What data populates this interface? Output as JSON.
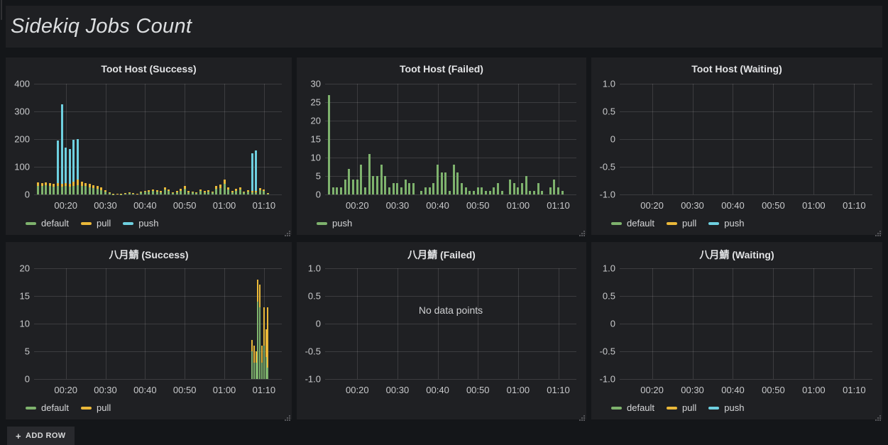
{
  "page": {
    "title": "Sidekiq Jobs Count",
    "add_row_label": "ADD ROW",
    "theme": {
      "page_bg": "#141619",
      "panel_bg": "#1f2023",
      "text": "#d8d9da",
      "green": "#7EB26D",
      "yellow": "#EAB839",
      "blue": "#6ED0E0"
    }
  },
  "chart_data": [
    {
      "type": "bar",
      "title": "Toot Host (Success)",
      "stacked": true,
      "grid": true,
      "legend_position": "bottom",
      "ylim": [
        0,
        400
      ],
      "y_ticks": [
        {
          "v": 400,
          "label": "400"
        },
        {
          "v": 300,
          "label": "300"
        },
        {
          "v": 200,
          "label": "200"
        },
        {
          "v": 100,
          "label": "100"
        },
        {
          "v": 0,
          "label": "0"
        }
      ],
      "x_range": [
        12,
        74.5
      ],
      "x_ticks": [
        {
          "v": 20,
          "label": "00:20"
        },
        {
          "v": 30,
          "label": "00:30"
        },
        {
          "v": 40,
          "label": "00:40"
        },
        {
          "v": 50,
          "label": "00:50"
        },
        {
          "v": 60,
          "label": "01:00"
        },
        {
          "v": 70,
          "label": "01:10"
        }
      ],
      "x": [
        13,
        14,
        15,
        16,
        17,
        18,
        19,
        20,
        21,
        22,
        23,
        24,
        25,
        26,
        27,
        28,
        29,
        30,
        31,
        32,
        33,
        34,
        35,
        36,
        37,
        38,
        39,
        40,
        41,
        42,
        43,
        44,
        45,
        46,
        47,
        48,
        49,
        50,
        51,
        52,
        53,
        54,
        55,
        56,
        57,
        58,
        59,
        60,
        61,
        62,
        63,
        64,
        65,
        66,
        67,
        68,
        69,
        70,
        71
      ],
      "series": [
        {
          "name": "default",
          "color": "#7EB26D",
          "values": [
            32,
            30,
            33,
            30,
            28,
            30,
            28,
            30,
            28,
            30,
            33,
            32,
            30,
            26,
            22,
            20,
            16,
            10,
            5,
            1,
            2,
            1,
            3,
            5,
            4,
            2,
            7,
            9,
            11,
            12,
            10,
            8,
            17,
            12,
            5,
            8,
            14,
            20,
            8,
            7,
            5,
            12,
            8,
            10,
            7,
            20,
            24,
            38,
            17,
            8,
            13,
            17,
            7,
            10,
            8,
            8,
            15,
            12,
            3
          ]
        },
        {
          "name": "pull",
          "color": "#EAB839",
          "values": [
            12,
            10,
            10,
            12,
            10,
            12,
            10,
            12,
            10,
            15,
            20,
            13,
            12,
            12,
            11,
            10,
            9,
            5,
            3,
            1,
            1,
            1,
            2,
            3,
            2,
            1,
            3,
            5,
            5,
            6,
            5,
            4,
            8,
            6,
            3,
            4,
            6,
            10,
            4,
            3,
            3,
            6,
            4,
            5,
            3,
            10,
            11,
            17,
            8,
            4,
            7,
            8,
            3,
            5,
            4,
            4,
            7,
            6,
            2
          ]
        },
        {
          "name": "push",
          "color": "#6ED0E0",
          "values": [
            0,
            0,
            0,
            0,
            0,
            153,
            287,
            128,
            127,
            152,
            147,
            0,
            0,
            0,
            0,
            0,
            0,
            0,
            0,
            0,
            0,
            0,
            0,
            0,
            0,
            0,
            0,
            0,
            0,
            0,
            0,
            0,
            0,
            0,
            0,
            0,
            0,
            0,
            0,
            0,
            0,
            0,
            0,
            0,
            0,
            0,
            0,
            0,
            0,
            0,
            0,
            0,
            0,
            0,
            138,
            146,
            0,
            0,
            0
          ]
        }
      ],
      "legend": [
        "default",
        "pull",
        "push"
      ],
      "no_data_text": null
    },
    {
      "type": "bar",
      "title": "Toot Host (Failed)",
      "stacked": true,
      "grid": true,
      "legend_position": "bottom",
      "ylim": [
        0,
        30
      ],
      "y_ticks": [
        {
          "v": 30,
          "label": "30"
        },
        {
          "v": 25,
          "label": "25"
        },
        {
          "v": 20,
          "label": "20"
        },
        {
          "v": 15,
          "label": "15"
        },
        {
          "v": 10,
          "label": "10"
        },
        {
          "v": 5,
          "label": "5"
        },
        {
          "v": 0,
          "label": "0"
        }
      ],
      "x_range": [
        12,
        74.5
      ],
      "x_ticks": [
        {
          "v": 20,
          "label": "00:20"
        },
        {
          "v": 30,
          "label": "00:30"
        },
        {
          "v": 40,
          "label": "00:40"
        },
        {
          "v": 50,
          "label": "00:50"
        },
        {
          "v": 60,
          "label": "01:00"
        },
        {
          "v": 70,
          "label": "01:10"
        }
      ],
      "x": [
        13,
        14,
        15,
        16,
        17,
        18,
        19,
        20,
        21,
        22,
        23,
        24,
        25,
        26,
        27,
        28,
        29,
        30,
        31,
        32,
        33,
        34,
        35,
        36,
        37,
        38,
        39,
        40,
        41,
        42,
        43,
        44,
        45,
        46,
        47,
        48,
        49,
        50,
        51,
        52,
        53,
        54,
        55,
        56,
        57,
        58,
        59,
        60,
        61,
        62,
        63,
        64,
        65,
        66,
        67,
        68,
        69,
        70,
        71
      ],
      "series": [
        {
          "name": "push",
          "color": "#7EB26D",
          "values": [
            27,
            2,
            2,
            2,
            4,
            7,
            4,
            4,
            8,
            2,
            11,
            5,
            5,
            8,
            5,
            2,
            3,
            3,
            2,
            4,
            3,
            3,
            0,
            1,
            2,
            2,
            3,
            8,
            6,
            6,
            1,
            8,
            6,
            3,
            2,
            1,
            1,
            2,
            2,
            1,
            1,
            2,
            3,
            1,
            0,
            4,
            3,
            2,
            3,
            5,
            1,
            1,
            3,
            1,
            0,
            2,
            4,
            2,
            1
          ]
        }
      ],
      "legend": [
        "push"
      ],
      "no_data_text": null
    },
    {
      "type": "bar",
      "title": "Toot Host (Waiting)",
      "stacked": true,
      "grid": true,
      "legend_position": "bottom",
      "ylim": [
        -1,
        1
      ],
      "y_ticks": [
        {
          "v": 1,
          "label": "1.0"
        },
        {
          "v": 0.5,
          "label": "0.5"
        },
        {
          "v": 0,
          "label": "0"
        },
        {
          "v": -0.5,
          "label": "-0.5"
        },
        {
          "v": -1,
          "label": "-1.0"
        }
      ],
      "x_range": [
        12,
        74.5
      ],
      "x_ticks": [
        {
          "v": 20,
          "label": "00:20"
        },
        {
          "v": 30,
          "label": "00:30"
        },
        {
          "v": 40,
          "label": "00:40"
        },
        {
          "v": 50,
          "label": "00:50"
        },
        {
          "v": 60,
          "label": "01:00"
        },
        {
          "v": 70,
          "label": "01:10"
        }
      ],
      "x": [],
      "series": [
        {
          "name": "default",
          "color": "#7EB26D",
          "values": []
        },
        {
          "name": "pull",
          "color": "#EAB839",
          "values": []
        },
        {
          "name": "push",
          "color": "#6ED0E0",
          "values": []
        }
      ],
      "legend": [
        "default",
        "pull",
        "push"
      ],
      "no_data_text": null
    },
    {
      "type": "bar",
      "title": "八月鯖 (Success)",
      "stacked": true,
      "grid": true,
      "legend_position": "bottom",
      "ylim": [
        0,
        20
      ],
      "y_ticks": [
        {
          "v": 20,
          "label": "20"
        },
        {
          "v": 15,
          "label": "15"
        },
        {
          "v": 10,
          "label": "10"
        },
        {
          "v": 5,
          "label": "5"
        },
        {
          "v": 0,
          "label": "0"
        }
      ],
      "x_range": [
        12,
        74.5
      ],
      "x_ticks": [
        {
          "v": 20,
          "label": "00:20"
        },
        {
          "v": 30,
          "label": "00:30"
        },
        {
          "v": 40,
          "label": "00:40"
        },
        {
          "v": 50,
          "label": "00:50"
        },
        {
          "v": 60,
          "label": "01:00"
        },
        {
          "v": 70,
          "label": "01:10"
        }
      ],
      "x": [
        67,
        67.5,
        68,
        68.5,
        69,
        69.5,
        70,
        70.5,
        71
      ],
      "series": [
        {
          "name": "default",
          "color": "#7EB26D",
          "values": [
            5,
            3,
            3,
            14,
            13,
            3,
            6,
            4,
            2
          ]
        },
        {
          "name": "pull",
          "color": "#EAB839",
          "values": [
            2,
            3,
            2,
            4,
            4,
            3,
            7,
            5,
            11
          ]
        }
      ],
      "legend": [
        "default",
        "pull"
      ],
      "no_data_text": null
    },
    {
      "type": "bar",
      "title": "八月鯖 (Failed)",
      "stacked": true,
      "grid": true,
      "legend_position": "bottom",
      "ylim": [
        -1,
        1
      ],
      "y_ticks": [
        {
          "v": 1,
          "label": "1.0"
        },
        {
          "v": 0.5,
          "label": "0.5"
        },
        {
          "v": 0,
          "label": "0"
        },
        {
          "v": -0.5,
          "label": "-0.5"
        },
        {
          "v": -1,
          "label": "-1.0"
        }
      ],
      "x_range": [
        12,
        74.5
      ],
      "x_ticks": [
        {
          "v": 20,
          "label": "00:20"
        },
        {
          "v": 30,
          "label": "00:30"
        },
        {
          "v": 40,
          "label": "00:40"
        },
        {
          "v": 50,
          "label": "00:50"
        },
        {
          "v": 60,
          "label": "01:00"
        },
        {
          "v": 70,
          "label": "01:10"
        }
      ],
      "x": [],
      "series": [],
      "legend": [],
      "no_data_text": "No data points"
    },
    {
      "type": "bar",
      "title": "八月鯖 (Waiting)",
      "stacked": true,
      "grid": true,
      "legend_position": "bottom",
      "ylim": [
        -1,
        1
      ],
      "y_ticks": [
        {
          "v": 1,
          "label": "1.0"
        },
        {
          "v": 0.5,
          "label": "0.5"
        },
        {
          "v": 0,
          "label": "0"
        },
        {
          "v": -0.5,
          "label": "-0.5"
        },
        {
          "v": -1,
          "label": "-1.0"
        }
      ],
      "x_range": [
        12,
        74.5
      ],
      "x_ticks": [
        {
          "v": 20,
          "label": "00:20"
        },
        {
          "v": 30,
          "label": "00:30"
        },
        {
          "v": 40,
          "label": "00:40"
        },
        {
          "v": 50,
          "label": "00:50"
        },
        {
          "v": 60,
          "label": "01:00"
        },
        {
          "v": 70,
          "label": "01:10"
        }
      ],
      "x": [],
      "series": [
        {
          "name": "default",
          "color": "#7EB26D",
          "values": []
        },
        {
          "name": "pull",
          "color": "#EAB839",
          "values": []
        },
        {
          "name": "push",
          "color": "#6ED0E0",
          "values": []
        }
      ],
      "legend": [
        "default",
        "pull",
        "push"
      ],
      "no_data_text": null
    }
  ]
}
